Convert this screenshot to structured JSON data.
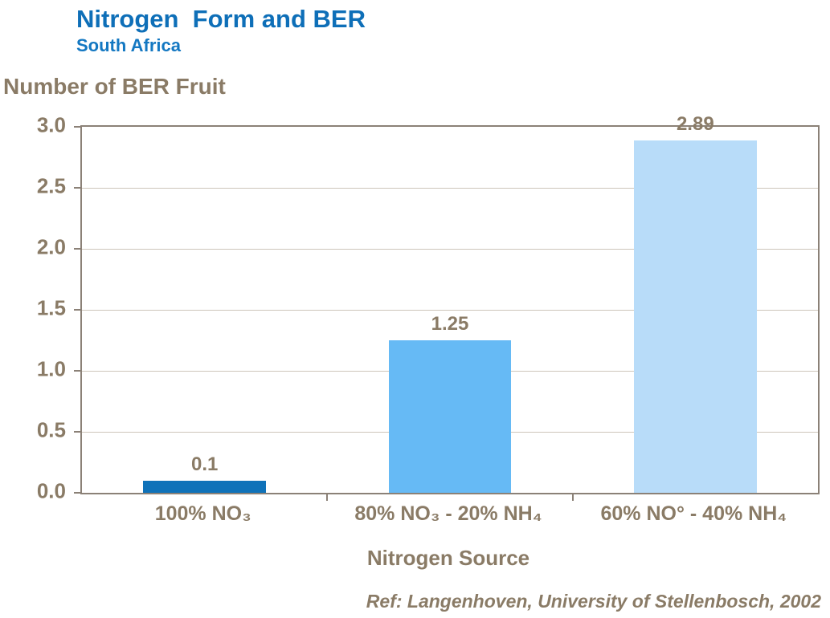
{
  "header": {
    "title": "Nitrogen  Form and BER",
    "subtitle": "South Africa"
  },
  "chart_data": {
    "type": "bar",
    "title": "Nitrogen Form and BER",
    "subtitle": "South Africa",
    "ylabel": "Number of BER Fruit",
    "xlabel": "Nitrogen Source",
    "categories": [
      "100% NO₃",
      "80% NO₃ - 20% NH₄",
      "60% NO° - 40% NH₄"
    ],
    "values": [
      0.1,
      1.25,
      2.89
    ],
    "data_labels": [
      "0.1",
      "1.25",
      "2.89"
    ],
    "bar_colors": [
      "#0f72b9",
      "#66baf5",
      "#b8dcf9"
    ],
    "ylim": [
      0,
      3.0
    ],
    "ytick_step": 0.5,
    "yticks": [
      "3.0",
      "2.5",
      "2.0",
      "1.5",
      "1.0",
      "0.5",
      "0.0"
    ],
    "grid": "horizontal",
    "legend": "none"
  },
  "footer": {
    "reference": "Ref: Langenhoven, University of Stellenbosch, 2002"
  },
  "colors": {
    "title_blue": "#0e6fb8",
    "subtitle_blue": "#1478c2",
    "text_brown": "#8a7b66",
    "axis_frame": "#8b8177",
    "gridline": "#cdc5ba",
    "bar_dark_blue": "#0f72b9",
    "bar_sky_blue": "#66baf5",
    "bar_pale_blue": "#b8dcf9",
    "background": "#ffffff"
  }
}
